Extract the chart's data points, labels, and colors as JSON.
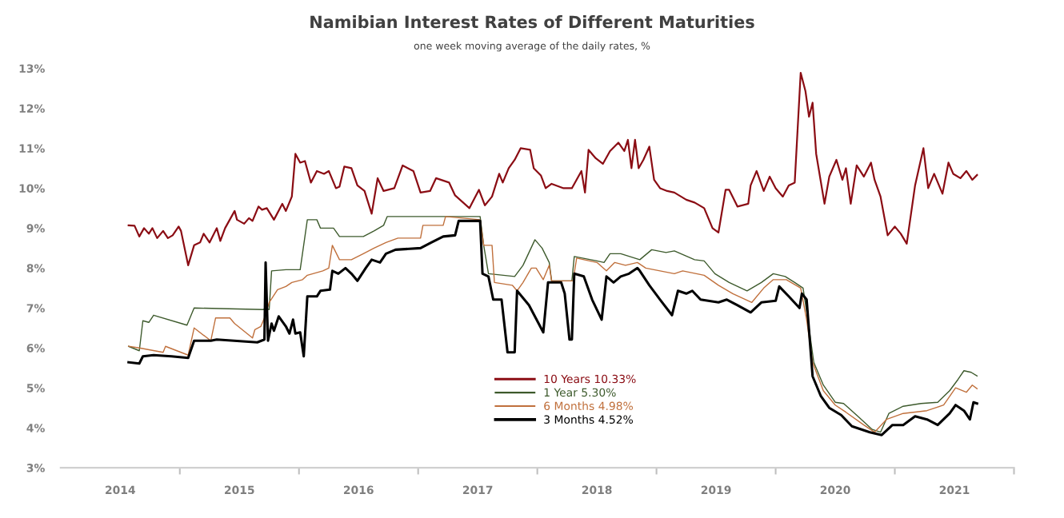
{
  "chart_data": {
    "type": "line",
    "title": "Namibian Interest Rates of Different Maturities",
    "subtitle": "one week moving average of the daily rates, %",
    "xlim": [
      2014,
      2022
    ],
    "ylim": [
      3,
      13
    ],
    "xticks": [
      {
        "value": 2014.5,
        "label": "2014"
      },
      {
        "value": 2015.5,
        "label": "2015"
      },
      {
        "value": 2016.5,
        "label": "2016"
      },
      {
        "value": 2017.5,
        "label": "2017"
      },
      {
        "value": 2018.5,
        "label": "2018"
      },
      {
        "value": 2019.5,
        "label": "2019"
      },
      {
        "value": 2020.5,
        "label": "2020"
      },
      {
        "value": 2021.5,
        "label": "2021"
      },
      {
        "value": 2015,
        "label": null
      },
      {
        "value": 2016,
        "label": null
      },
      {
        "value": 2017,
        "label": null
      },
      {
        "value": 2018,
        "label": null
      },
      {
        "value": 2019,
        "label": null
      },
      {
        "value": 2020,
        "label": null
      },
      {
        "value": 2021,
        "label": null
      },
      {
        "value": 2022,
        "label": null
      }
    ],
    "yticks": [
      {
        "value": 3,
        "label": "3%"
      },
      {
        "value": 4,
        "label": "4%"
      },
      {
        "value": 5,
        "label": "5%"
      },
      {
        "value": 6,
        "label": "6%"
      },
      {
        "value": 7,
        "label": "7%"
      },
      {
        "value": 8,
        "label": "8%"
      },
      {
        "value": 9,
        "label": "9%"
      },
      {
        "value": 10,
        "label": "10%"
      },
      {
        "value": 11,
        "label": "11%"
      },
      {
        "value": 12,
        "label": "12%"
      },
      {
        "value": 13,
        "label": "13%"
      }
    ],
    "grid": false,
    "legend": "bottom",
    "marker": "none",
    "line_style": "solid",
    "series": [
      {
        "name": "10 Years 10.33%",
        "color": "#8b0d14",
        "x": [
          2014.57,
          2014.62,
          2014.66,
          2014.7,
          2014.74,
          2014.77,
          2014.81,
          2014.86,
          2014.9,
          2014.94,
          2014.99,
          2015.01,
          2015.07,
          2015.12,
          2015.17,
          2015.2,
          2015.25,
          2015.31,
          2015.34,
          2015.38,
          2015.46,
          2015.48,
          2015.54,
          2015.58,
          2015.61,
          2015.66,
          2015.69,
          2015.73,
          2015.79,
          2015.86,
          2015.89,
          2015.94,
          2015.97,
          2016.01,
          2016.05,
          2016.1,
          2016.15,
          2016.21,
          2016.25,
          2016.31,
          2016.34,
          2016.38,
          2016.44,
          2016.49,
          2016.55,
          2016.61,
          2016.66,
          2016.71,
          2016.8,
          2016.87,
          2016.96,
          2017.02,
          2017.1,
          2017.15,
          2017.26,
          2017.31,
          2017.43,
          2017.51,
          2017.56,
          2017.62,
          2017.68,
          2017.71,
          2017.76,
          2017.81,
          2017.86,
          2017.94,
          2017.97,
          2018.03,
          2018.07,
          2018.12,
          2018.22,
          2018.29,
          2018.37,
          2018.4,
          2018.43,
          2018.49,
          2018.55,
          2018.61,
          2018.68,
          2018.73,
          2018.76,
          2018.79,
          2018.82,
          2018.85,
          2018.89,
          2018.94,
          2018.98,
          2019.03,
          2019.09,
          2019.15,
          2019.25,
          2019.32,
          2019.4,
          2019.47,
          2019.52,
          2019.58,
          2019.61,
          2019.68,
          2019.77,
          2019.79,
          2019.84,
          2019.9,
          2019.95,
          2020.0,
          2020.06,
          2020.11,
          2020.16,
          2020.21,
          2020.25,
          2020.28,
          2020.31,
          2020.34,
          2020.41,
          2020.45,
          2020.51,
          2020.56,
          2020.59,
          2020.63,
          2020.68,
          2020.74,
          2020.8,
          2020.83,
          2020.88,
          2020.94,
          2021.0,
          2021.05,
          2021.1,
          2021.17,
          2021.24,
          2021.28,
          2021.33,
          2021.4,
          2021.45,
          2021.49,
          2021.55,
          2021.6,
          2021.65,
          2021.69
        ],
        "values": [
          9.07,
          9.06,
          8.79,
          9.0,
          8.86,
          9.0,
          8.75,
          8.93,
          8.75,
          8.82,
          9.04,
          8.93,
          8.07,
          8.57,
          8.64,
          8.86,
          8.64,
          9.0,
          8.68,
          9.0,
          9.43,
          9.21,
          9.11,
          9.25,
          9.18,
          9.54,
          9.46,
          9.5,
          9.21,
          9.61,
          9.43,
          9.79,
          10.86,
          10.64,
          10.68,
          10.14,
          10.43,
          10.36,
          10.43,
          10.0,
          10.04,
          10.54,
          10.5,
          10.07,
          9.93,
          9.36,
          10.25,
          9.93,
          10.0,
          10.57,
          10.43,
          9.89,
          9.93,
          10.25,
          10.14,
          9.82,
          9.5,
          9.96,
          9.57,
          9.79,
          10.36,
          10.14,
          10.5,
          10.71,
          11.0,
          10.96,
          10.5,
          10.32,
          10.0,
          10.11,
          10.0,
          10.0,
          10.43,
          9.89,
          10.96,
          10.75,
          10.61,
          10.93,
          11.14,
          10.93,
          11.21,
          10.5,
          11.21,
          10.5,
          10.71,
          11.04,
          10.21,
          10.0,
          9.93,
          9.89,
          9.71,
          9.64,
          9.5,
          9.0,
          8.89,
          9.96,
          9.96,
          9.54,
          9.61,
          10.07,
          10.43,
          9.93,
          10.29,
          10.0,
          9.79,
          10.07,
          10.14,
          12.89,
          12.43,
          11.79,
          12.14,
          10.86,
          9.61,
          10.29,
          10.71,
          10.21,
          10.5,
          9.61,
          10.57,
          10.29,
          10.64,
          10.21,
          9.79,
          8.82,
          9.04,
          8.86,
          8.61,
          10.07,
          11.0,
          10.0,
          10.36,
          9.86,
          10.64,
          10.36,
          10.25,
          10.43,
          10.21,
          10.33
        ]
      },
      {
        "name": "1 Year 5.30%",
        "color": "#3d5a2c",
        "x": [
          2014.57,
          2014.66,
          2014.69,
          2014.74,
          2014.78,
          2015.06,
          2015.12,
          2015.7,
          2015.72,
          2015.75,
          2015.77,
          2015.89,
          2016.01,
          2016.07,
          2016.15,
          2016.18,
          2016.29,
          2016.34,
          2016.44,
          2016.54,
          2016.63,
          2016.71,
          2016.74,
          2017.52,
          2017.55,
          2017.59,
          2017.81,
          2017.88,
          2017.98,
          2018.04,
          2018.1,
          2018.12,
          2018.29,
          2018.31,
          2018.5,
          2018.56,
          2018.61,
          2018.7,
          2018.86,
          2018.96,
          2019.08,
          2019.15,
          2019.32,
          2019.4,
          2019.49,
          2019.61,
          2019.76,
          2019.88,
          2019.98,
          2020.08,
          2020.16,
          2020.23,
          2020.27,
          2020.32,
          2020.4,
          2020.5,
          2020.57,
          2020.69,
          2020.81,
          2020.88,
          2020.95,
          2021.07,
          2021.22,
          2021.36,
          2021.46,
          2021.53,
          2021.58,
          2021.64,
          2021.69
        ],
        "values": [
          6.04,
          5.93,
          6.68,
          6.64,
          6.82,
          6.57,
          7.0,
          6.96,
          7.0,
          6.96,
          7.93,
          7.96,
          7.96,
          9.21,
          9.21,
          9.0,
          9.0,
          8.79,
          8.79,
          8.79,
          8.93,
          9.07,
          9.29,
          9.29,
          8.57,
          7.86,
          7.79,
          8.07,
          8.71,
          8.5,
          8.14,
          7.68,
          7.68,
          8.29,
          8.18,
          8.14,
          8.36,
          8.36,
          8.21,
          8.46,
          8.39,
          8.43,
          8.21,
          8.18,
          7.86,
          7.64,
          7.43,
          7.64,
          7.86,
          7.79,
          7.64,
          7.5,
          6.71,
          5.64,
          5.07,
          4.64,
          4.61,
          4.29,
          3.96,
          3.89,
          4.36,
          4.54,
          4.61,
          4.64,
          4.93,
          5.21,
          5.43,
          5.39,
          5.3
        ]
      },
      {
        "name": "6 Months 4.98%",
        "color": "#c0703c",
        "x": [
          2014.57,
          2014.66,
          2014.86,
          2014.88,
          2015.07,
          2015.12,
          2015.26,
          2015.3,
          2015.42,
          2015.46,
          2015.61,
          2015.63,
          2015.68,
          2015.71,
          2015.75,
          2015.82,
          2015.89,
          2015.94,
          2016.03,
          2016.07,
          2016.2,
          2016.25,
          2016.28,
          2016.34,
          2016.44,
          2016.54,
          2016.63,
          2016.73,
          2016.83,
          2017.02,
          2017.04,
          2017.21,
          2017.23,
          2017.52,
          2017.55,
          2017.62,
          2017.64,
          2017.79,
          2017.83,
          2017.88,
          2017.95,
          2017.99,
          2018.05,
          2018.1,
          2018.12,
          2018.3,
          2018.33,
          2018.5,
          2018.58,
          2018.65,
          2018.74,
          2018.84,
          2018.91,
          2019.03,
          2019.15,
          2019.22,
          2019.4,
          2019.52,
          2019.64,
          2019.8,
          2019.9,
          2019.98,
          2020.09,
          2020.21,
          2020.26,
          2020.31,
          2020.4,
          2020.5,
          2020.59,
          2020.74,
          2020.83,
          2020.93,
          2021.07,
          2021.27,
          2021.41,
          2021.51,
          2021.6,
          2021.65,
          2021.69
        ],
        "values": [
          6.04,
          6.0,
          5.89,
          6.04,
          5.82,
          6.5,
          6.18,
          6.75,
          6.75,
          6.61,
          6.25,
          6.46,
          6.54,
          6.75,
          7.14,
          7.46,
          7.54,
          7.64,
          7.71,
          7.82,
          7.93,
          8.0,
          8.57,
          8.21,
          8.21,
          8.36,
          8.5,
          8.64,
          8.75,
          8.75,
          9.07,
          9.07,
          9.29,
          9.21,
          8.57,
          8.57,
          7.64,
          7.57,
          7.43,
          7.64,
          8.0,
          8.0,
          7.71,
          8.07,
          7.68,
          7.68,
          8.25,
          8.14,
          7.93,
          8.14,
          8.07,
          8.14,
          8.0,
          7.93,
          7.86,
          7.93,
          7.82,
          7.57,
          7.36,
          7.14,
          7.5,
          7.71,
          7.71,
          7.5,
          6.71,
          5.64,
          4.93,
          4.57,
          4.39,
          4.07,
          3.89,
          4.21,
          4.36,
          4.43,
          4.57,
          5.0,
          4.89,
          5.07,
          4.98
        ]
      },
      {
        "name": "3 Months 4.52%",
        "color": "#000000",
        "x": [
          2014.57,
          2014.66,
          2014.69,
          2014.78,
          2014.93,
          2015.07,
          2015.12,
          2015.26,
          2015.31,
          2015.65,
          2015.71,
          2015.72,
          2015.74,
          2015.77,
          2015.79,
          2015.83,
          2015.89,
          2015.92,
          2015.95,
          2015.97,
          2016.01,
          2016.04,
          2016.07,
          2016.15,
          2016.18,
          2016.26,
          2016.28,
          2016.33,
          2016.39,
          2016.44,
          2016.49,
          2016.56,
          2016.61,
          2016.68,
          2016.73,
          2016.81,
          2017.02,
          2017.11,
          2017.21,
          2017.31,
          2017.34,
          2017.52,
          2017.54,
          2017.59,
          2017.63,
          2017.7,
          2017.75,
          2017.81,
          2017.83,
          2017.93,
          2018.05,
          2018.09,
          2018.2,
          2018.23,
          2018.27,
          2018.29,
          2018.31,
          2018.39,
          2018.46,
          2018.54,
          2018.58,
          2018.64,
          2018.7,
          2018.77,
          2018.84,
          2018.86,
          2018.94,
          2019.03,
          2019.13,
          2019.18,
          2019.25,
          2019.3,
          2019.37,
          2019.52,
          2019.59,
          2019.68,
          2019.79,
          2019.88,
          2020.0,
          2020.03,
          2020.11,
          2020.2,
          2020.22,
          2020.26,
          2020.31,
          2020.38,
          2020.45,
          2020.55,
          2020.64,
          2020.79,
          2020.89,
          2020.98,
          2021.07,
          2021.17,
          2021.27,
          2021.36,
          2021.46,
          2021.51,
          2021.58,
          2021.63,
          2021.66,
          2021.69
        ],
        "values": [
          5.64,
          5.61,
          5.79,
          5.82,
          5.79,
          5.75,
          6.18,
          6.18,
          6.21,
          6.14,
          6.21,
          8.14,
          6.18,
          6.61,
          6.43,
          6.79,
          6.54,
          6.36,
          6.71,
          6.36,
          6.39,
          5.79,
          7.29,
          7.29,
          7.43,
          7.46,
          7.93,
          7.86,
          8.0,
          7.86,
          7.68,
          8.0,
          8.21,
          8.14,
          8.36,
          8.46,
          8.5,
          8.64,
          8.79,
          8.82,
          9.18,
          9.18,
          7.86,
          7.79,
          7.21,
          7.21,
          5.89,
          5.89,
          7.43,
          7.07,
          6.39,
          7.64,
          7.64,
          7.36,
          6.21,
          6.21,
          7.86,
          7.79,
          7.21,
          6.71,
          7.79,
          7.64,
          7.79,
          7.86,
          8.0,
          7.93,
          7.57,
          7.21,
          6.82,
          7.43,
          7.36,
          7.43,
          7.21,
          7.14,
          7.21,
          7.07,
          6.89,
          7.14,
          7.18,
          7.54,
          7.29,
          7.0,
          7.36,
          7.21,
          5.29,
          4.79,
          4.5,
          4.32,
          4.04,
          3.89,
          3.82,
          4.07,
          4.07,
          4.29,
          4.21,
          4.07,
          4.36,
          4.57,
          4.43,
          4.21,
          4.64,
          4.61
        ]
      }
    ]
  }
}
